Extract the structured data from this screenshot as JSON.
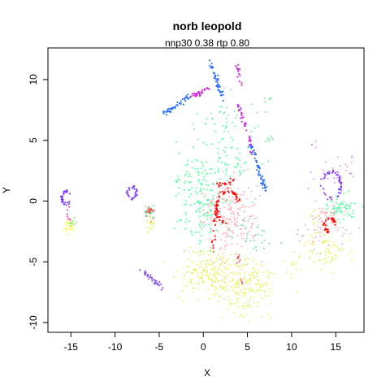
{
  "chart_data": {
    "type": "scatter",
    "title": "norb leopold",
    "subtitle": "nnp30 0.38 rtp 0.80",
    "xlabel": "X",
    "ylabel": "Y",
    "xlim": [
      -17.6,
      18.2
    ],
    "ylim": [
      -10.8,
      12.6
    ],
    "x_ticks": [
      -15,
      -10,
      -5,
      0,
      5,
      10,
      15
    ],
    "x_tick_labels": [
      "-15",
      "-10",
      "-5",
      "0",
      "5",
      "10",
      "15"
    ],
    "y_ticks": [
      -10,
      -5,
      0,
      5,
      10
    ],
    "y_tick_labels": [
      "-10",
      "-5",
      "0",
      "5",
      "10"
    ],
    "grid": false,
    "legend": "none",
    "clusters": [
      {
        "shape": "ring",
        "color": "#7733ff",
        "cx": -15.5,
        "cy": 0.3,
        "r": 0.5,
        "n": 30
      },
      {
        "shape": "line",
        "color": "#ff44aa",
        "x1": -15.4,
        "y1": -0.4,
        "x2": -15.2,
        "y2": -1.6,
        "n": 8
      },
      {
        "shape": "blob",
        "color": "#ffff00",
        "cx": -15.2,
        "cy": -2.1,
        "sx": 0.3,
        "sy": 0.3,
        "n": 25
      },
      {
        "shape": "blob",
        "color": "#33dd55",
        "cx": -14.9,
        "cy": -1.8,
        "sx": 0.2,
        "sy": 0.2,
        "n": 8
      },
      {
        "shape": "ring",
        "color": "#7733ff",
        "cx": -8.1,
        "cy": 0.7,
        "r": 0.5,
        "n": 28
      },
      {
        "shape": "blob",
        "color": "#ff0000",
        "cx": -6.0,
        "cy": -1.0,
        "sx": 0.3,
        "sy": 0.3,
        "n": 20
      },
      {
        "shape": "blob",
        "color": "#33dd77",
        "cx": -6.1,
        "cy": -0.9,
        "sx": 0.4,
        "sy": 0.4,
        "n": 15
      },
      {
        "shape": "blob",
        "color": "#ddee33",
        "cx": -6.0,
        "cy": -1.8,
        "sx": 0.3,
        "sy": 0.4,
        "n": 18
      },
      {
        "shape": "line",
        "color": "#8855ee",
        "x1": -6.8,
        "y1": -5.8,
        "x2": -4.5,
        "y2": -7.2,
        "n": 40
      },
      {
        "shape": "line",
        "color": "#2266ff",
        "x1": -4.5,
        "y1": 7.2,
        "x2": -1.5,
        "y2": 8.6,
        "n": 45
      },
      {
        "shape": "line",
        "color": "#cc22dd",
        "x1": -1.5,
        "y1": 8.6,
        "x2": 0.7,
        "y2": 9.3,
        "n": 30
      },
      {
        "shape": "line",
        "color": "#2266ff",
        "x1": 0.7,
        "y1": 11.5,
        "x2": 2.3,
        "y2": 8.2,
        "n": 45
      },
      {
        "shape": "line",
        "color": "#cc22dd",
        "x1": 3.8,
        "y1": 11.4,
        "x2": 4.2,
        "y2": 9.6,
        "n": 15
      },
      {
        "shape": "line",
        "color": "#cc22dd",
        "x1": 3.9,
        "y1": 8.0,
        "x2": 5.6,
        "y2": 4.0,
        "n": 40
      },
      {
        "shape": "line",
        "color": "#2266ff",
        "x1": 5.4,
        "y1": 4.6,
        "x2": 7.2,
        "y2": 0.6,
        "n": 50
      },
      {
        "shape": "blob",
        "color": "#44dd99",
        "cx": 2.5,
        "cy": 6.5,
        "sx": 2.0,
        "sy": 1.0,
        "n": 40
      },
      {
        "shape": "blob",
        "color": "#00ff77",
        "cx": -0.5,
        "cy": 0.5,
        "sx": 1.3,
        "sy": 2.2,
        "n": 160
      },
      {
        "shape": "blob",
        "color": "#00ff77",
        "cx": 3.2,
        "cy": 3.5,
        "sx": 1.8,
        "sy": 1.3,
        "n": 60
      },
      {
        "shape": "blob",
        "color": "#ff8899",
        "cx": 3.0,
        "cy": -1.2,
        "sx": 1.6,
        "sy": 1.6,
        "n": 180
      },
      {
        "shape": "arc",
        "color": "#ff0000",
        "cx": 2.8,
        "cy": -0.5,
        "r": 1.3,
        "n": 60
      },
      {
        "shape": "line",
        "color": "#ff0000",
        "x1": 1.4,
        "y1": -0.4,
        "x2": 1.1,
        "y2": -4.0,
        "n": 20
      },
      {
        "shape": "line",
        "color": "#ff0000",
        "x1": 1.6,
        "y1": 1.3,
        "x2": 3.6,
        "y2": 1.6,
        "n": 18
      },
      {
        "shape": "blob",
        "color": "#ff0000",
        "cx": 4.0,
        "cy": -4.8,
        "sx": 0.2,
        "sy": 0.15,
        "n": 8
      },
      {
        "shape": "blob",
        "color": "#ddee22",
        "cx": 0.8,
        "cy": -5.9,
        "sx": 1.6,
        "sy": 1.0,
        "n": 170
      },
      {
        "shape": "blob",
        "color": "#ddee22",
        "cx": 4.8,
        "cy": -7.0,
        "sx": 1.5,
        "sy": 1.1,
        "n": 170
      },
      {
        "shape": "blob",
        "color": "#ff0000",
        "cx": 4.4,
        "cy": -6.6,
        "sx": 0.1,
        "sy": 0.1,
        "n": 4
      },
      {
        "shape": "blob",
        "color": "#ddee33",
        "cx": 10.5,
        "cy": -5.8,
        "sx": 0.7,
        "sy": 0.9,
        "n": 15
      },
      {
        "shape": "blob",
        "color": "#cc88ee",
        "cx": 13.5,
        "cy": -3.0,
        "sx": 2.5,
        "sy": 1.0,
        "n": 25
      },
      {
        "shape": "ring",
        "color": "#7733ff",
        "cx": 14.5,
        "cy": 1.3,
        "r": 1.1,
        "n": 50
      },
      {
        "shape": "blob",
        "color": "#cc66ee",
        "cx": 15.0,
        "cy": 2.0,
        "sx": 1.4,
        "sy": 0.7,
        "n": 25
      },
      {
        "shape": "blob",
        "color": "#00ff77",
        "cx": 15.6,
        "cy": -0.5,
        "sx": 0.8,
        "sy": 0.6,
        "n": 60
      },
      {
        "shape": "blob",
        "color": "#ff8899",
        "cx": 14.0,
        "cy": -1.5,
        "sx": 1.0,
        "sy": 0.6,
        "n": 50
      },
      {
        "shape": "arc",
        "color": "#ff0000",
        "cx": 14.4,
        "cy": -2.0,
        "r": 0.6,
        "n": 30
      },
      {
        "shape": "blob",
        "color": "#ddee22",
        "cx": 14.0,
        "cy": -3.8,
        "sx": 1.0,
        "sy": 0.8,
        "n": 70
      },
      {
        "shape": "blob",
        "color": "#ddee33",
        "cx": 12.6,
        "cy": -2.0,
        "sx": 0.6,
        "sy": 0.5,
        "n": 12
      },
      {
        "shape": "blob",
        "color": "#cc66ee",
        "cx": 16.5,
        "cy": 3.0,
        "sx": 0.3,
        "sy": 0.5,
        "n": 8
      },
      {
        "shape": "blob",
        "color": "#cc66ee",
        "cx": 12.6,
        "cy": 4.8,
        "sx": 0.2,
        "sy": 0.2,
        "n": 4
      },
      {
        "shape": "blob",
        "color": "#33dd77",
        "cx": 7.2,
        "cy": 8.0,
        "sx": 0.2,
        "sy": 0.4,
        "n": 6
      },
      {
        "shape": "blob",
        "color": "#33dd77",
        "cx": 7.5,
        "cy": 5.3,
        "sx": 0.3,
        "sy": 0.3,
        "n": 5
      },
      {
        "shape": "blob",
        "color": "#33cc88",
        "cx": 5.7,
        "cy": -3.0,
        "sx": 1.5,
        "sy": 0.9,
        "n": 30
      }
    ]
  }
}
